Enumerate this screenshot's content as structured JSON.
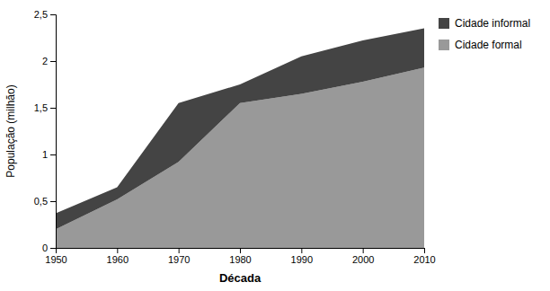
{
  "chart_data": {
    "type": "area",
    "stacked": true,
    "xlabel": "Década",
    "ylabel": "População (milhão)",
    "x": [
      1950,
      1960,
      1970,
      1980,
      1990,
      2000,
      2010
    ],
    "series": [
      {
        "name": "Cidade formal",
        "color": "#999999",
        "values": [
          0.2,
          0.52,
          0.92,
          1.55,
          1.65,
          1.78,
          1.93
        ]
      },
      {
        "name": "Cidade informal",
        "color": "#444444",
        "values": [
          0.17,
          0.13,
          0.63,
          0.2,
          0.4,
          0.44,
          0.42
        ]
      }
    ],
    "xlim": [
      1950,
      2010
    ],
    "xticks": [
      1950,
      1960,
      1970,
      1980,
      1990,
      2000,
      2010
    ],
    "ylim": [
      0,
      2.5
    ],
    "yticks": [
      0,
      {
        "value": 0.5,
        "label": "0,5"
      },
      1,
      {
        "value": 1.5,
        "label": "1,5"
      },
      2,
      {
        "value": 2.5,
        "label": "2,5"
      }
    ],
    "grid": false,
    "legend": "right"
  }
}
